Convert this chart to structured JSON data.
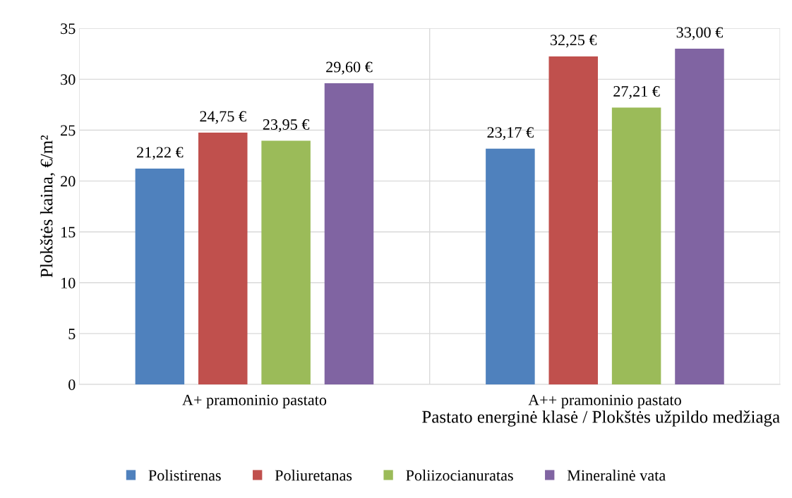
{
  "chart_data": {
    "type": "bar",
    "categories": [
      "A+ pramoninio pastato",
      "A++ pramoninio pastato"
    ],
    "xlabel": "Pastato energinė klasė / Plokštės užpildo medžiaga",
    "ylabel": "Plokštės kaina, €/m²",
    "ylim": [
      0,
      35
    ],
    "yticks": [
      0,
      5,
      10,
      15,
      20,
      25,
      30,
      35
    ],
    "grid": true,
    "legend": "bottom",
    "series": [
      {
        "name": "Polistirenas",
        "color": "#4f81bd",
        "values": [
          21.22,
          23.17
        ],
        "value_labels": [
          "21,22 €",
          "23,17 €"
        ]
      },
      {
        "name": "Poliuretanas",
        "color": "#c0504d",
        "values": [
          24.75,
          32.25
        ],
        "value_labels": [
          "24,75 €",
          "32,25 €"
        ]
      },
      {
        "name": "Poliizocianuratas",
        "color": "#9bbb59",
        "values": [
          23.95,
          27.21
        ],
        "value_labels": [
          "23,95 €",
          "27,21 €"
        ]
      },
      {
        "name": "Mineralinė vata",
        "color": "#8064a2",
        "values": [
          29.6,
          33.0
        ],
        "value_labels": [
          "29,60 €",
          "33,00 €"
        ]
      }
    ]
  }
}
